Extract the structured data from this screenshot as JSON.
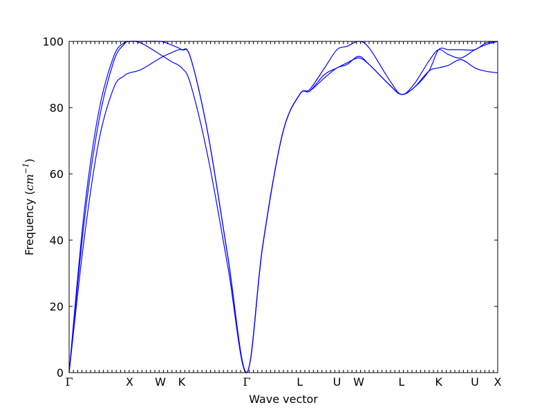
{
  "chart_data": {
    "type": "line",
    "title": "",
    "xlabel": "Wave vector",
    "ylabel": {
      "prefix": "Frequency (",
      "unit": "cm",
      "exponent": "−1",
      "suffix": ")"
    },
    "ylim": [
      0,
      100
    ],
    "yticks": [
      0,
      20,
      40,
      60,
      80,
      100
    ],
    "ytick_labels": [
      "0",
      "20",
      "40",
      "60",
      "80",
      "100"
    ],
    "xlim": [
      0,
      8.64
    ],
    "high_symmetry_points": [
      {
        "label": "Γ",
        "x": 0.0
      },
      {
        "label": "X",
        "x": 1.22
      },
      {
        "label": "W",
        "x": 1.84
      },
      {
        "label": "K",
        "x": 2.27
      },
      {
        "label": "Γ",
        "x": 3.58
      },
      {
        "label": "L",
        "x": 4.65
      },
      {
        "label": "U",
        "x": 5.4
      },
      {
        "label": "W",
        "x": 5.84
      },
      {
        "label": "L",
        "x": 6.7
      },
      {
        "label": "K",
        "x": 7.45
      },
      {
        "label": "U",
        "x": 8.18
      },
      {
        "label": "X",
        "x": 8.64
      }
    ],
    "line_color": "#0000ff",
    "grid": false,
    "legend": "none",
    "series": [
      {
        "x": [
          0,
          0.3,
          0.6,
          0.9,
          1.1,
          1.22,
          1.45,
          1.84,
          2.05,
          2.27,
          2.45,
          2.8,
          3.2,
          3.58,
          3.9,
          4.3,
          4.65,
          4.85,
          5.15,
          5.4,
          5.6,
          5.84,
          6.05,
          6.45,
          6.7,
          6.95,
          7.25,
          7.45,
          7.65,
          7.9,
          8.18,
          8.4,
          8.64
        ],
        "values": [
          0,
          45,
          76,
          94,
          99,
          100,
          99.5,
          96,
          94,
          92,
          87,
          65,
          32,
          0,
          38,
          72,
          84,
          85,
          90,
          92,
          93.5,
          95,
          93,
          87,
          84,
          86,
          91,
          92,
          92.8,
          94.5,
          92,
          91,
          90.5
        ]
      },
      {
        "x": [
          0,
          0.3,
          0.6,
          0.9,
          1.1,
          1.22,
          1.45,
          1.84,
          2.05,
          2.27,
          2.45,
          2.8,
          3.2,
          3.58,
          3.9,
          4.3,
          4.65,
          4.85,
          5.15,
          5.4,
          5.6,
          5.84,
          6.05,
          6.45,
          6.7,
          6.95,
          7.25,
          7.45,
          7.65,
          7.9,
          8.18,
          8.4,
          8.64
        ],
        "values": [
          0,
          40,
          70,
          86,
          89.5,
          90.5,
          91.5,
          95,
          96.5,
          97.5,
          95,
          72,
          35,
          0,
          38,
          72,
          84,
          85,
          89,
          92,
          93,
          95.5,
          93,
          87,
          84,
          86,
          91,
          97.5,
          97.5,
          97.5,
          97.5,
          99.5,
          100
        ]
      },
      {
        "x": [
          0,
          0.3,
          0.6,
          0.9,
          1.1,
          1.22,
          1.45,
          1.84,
          2.05,
          2.27,
          2.45,
          2.8,
          3.2,
          3.58,
          3.9,
          4.3,
          4.65,
          4.85,
          5.15,
          5.4,
          5.6,
          5.84,
          6.05,
          6.45,
          6.7,
          6.95,
          7.25,
          7.45,
          7.65,
          7.9,
          8.18,
          8.4,
          8.64
        ],
        "values": [
          0,
          48,
          79,
          95.5,
          99.5,
          100,
          100,
          100,
          99,
          97.5,
          95,
          72,
          35,
          0,
          38,
          72,
          84,
          85.5,
          92,
          97.5,
          98.5,
          100,
          98,
          88.5,
          84,
          87,
          94,
          97.5,
          96,
          95,
          97.5,
          99,
          100
        ]
      }
    ]
  }
}
